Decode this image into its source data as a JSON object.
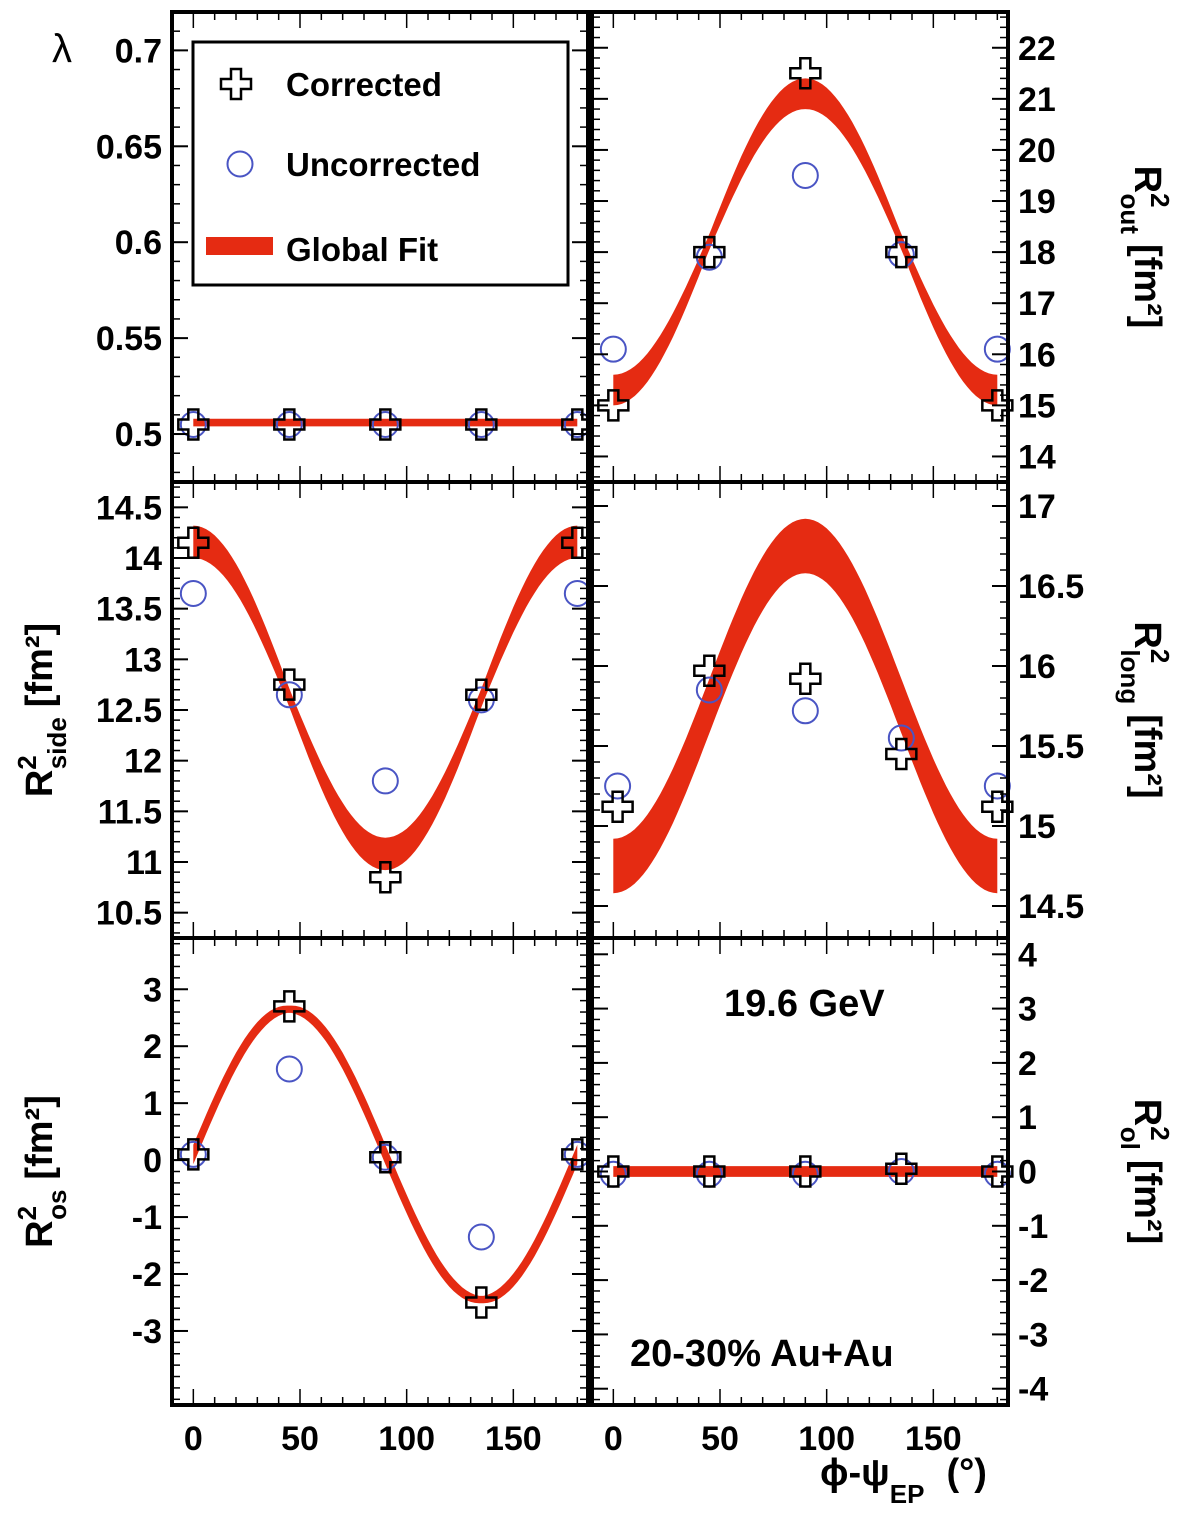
{
  "figure": {
    "xlabel": "ϕ-ψ",
    "xlabel_sub": "EP",
    "xlabel_unit": "(°)",
    "energy": "19.6 GeV",
    "centrality": "20-30%  Au+Au"
  },
  "legend": {
    "corrected": "Corrected",
    "uncorrected": "Uncorrected",
    "fit": "Global Fit"
  },
  "colors": {
    "band": "#e52b12",
    "uncorrected_marker": "#4a55c4",
    "corrected_marker": "#000000"
  },
  "chart_data": [
    {
      "id": "lambda",
      "type": "scatter",
      "ylabel": "λ",
      "xlim": [
        -10,
        185
      ],
      "ylim": [
        0.475,
        0.72
      ],
      "yticks": [
        "0.5",
        "0.55",
        "0.6",
        "0.65",
        "0.7"
      ],
      "axis_side": "left",
      "x": [
        0,
        45,
        90,
        135,
        180
      ],
      "corrected": [
        0.505,
        0.505,
        0.505,
        0.505,
        0.505
      ],
      "uncorrected": [
        0.505,
        0.505,
        0.505,
        0.505,
        0.505
      ],
      "fit": {
        "mean": 0.506,
        "amp": 0,
        "harm": "cos",
        "width": 0.004,
        "width_amp": 0
      }
    },
    {
      "id": "rout",
      "type": "scatter",
      "ylabel": "R",
      "ylabel_sub": "out",
      "ylabel_unit": "[fm²]",
      "xlim": [
        -10,
        185
      ],
      "ylim": [
        13.5,
        22.7
      ],
      "yticks": [
        "14",
        "15",
        "16",
        "17",
        "18",
        "19",
        "20",
        "21",
        "22"
      ],
      "axis_side": "right",
      "x": [
        0,
        45,
        90,
        135,
        180
      ],
      "corrected": [
        15.0,
        18.0,
        21.5,
        18.0,
        15.0
      ],
      "uncorrected": [
        16.1,
        17.9,
        19.5,
        17.95,
        16.1
      ],
      "fit": {
        "mean": 18.2,
        "amp": -2.9,
        "harm": "cos",
        "width": 0.3,
        "width_amp": 0.15
      }
    },
    {
      "id": "rside",
      "type": "scatter",
      "ylabel": "R",
      "ylabel_sub": "side",
      "ylabel_unit": "[fm²]",
      "xlim": [
        -10,
        185
      ],
      "ylim": [
        10.25,
        14.75
      ],
      "yticks": [
        "10.5",
        "11",
        "11.5",
        "12",
        "12.5",
        "13",
        "13.5",
        "14",
        "14.5"
      ],
      "axis_side": "left",
      "x": [
        0,
        45,
        90,
        135,
        180
      ],
      "corrected": [
        14.15,
        12.75,
        10.85,
        12.65,
        14.15
      ],
      "uncorrected": [
        13.65,
        12.65,
        11.8,
        12.6,
        13.65
      ],
      "fit": {
        "mean": 12.62,
        "amp": 1.54,
        "harm": "cos",
        "width": 0.18,
        "width_amp": 0.07
      }
    },
    {
      "id": "rlong",
      "type": "scatter",
      "ylabel": "R",
      "ylabel_sub": "long",
      "ylabel_unit": "[fm²]",
      "xlim": [
        -10,
        185
      ],
      "ylim": [
        14.3,
        17.15
      ],
      "yticks": [
        "14.5",
        "15",
        "15.5",
        "16",
        "16.5",
        "17"
      ],
      "axis_side": "right",
      "x": [
        2,
        45,
        90,
        135,
        180
      ],
      "corrected": [
        15.12,
        15.97,
        15.92,
        15.45,
        15.12
      ],
      "uncorrected": [
        15.25,
        15.85,
        15.72,
        15.55,
        15.25
      ],
      "fit": {
        "mean": 15.75,
        "amp": -1.0,
        "harm": "cos",
        "width": 0.34,
        "width_amp": 0
      }
    },
    {
      "id": "ros",
      "type": "scatter",
      "ylabel": "R",
      "ylabel_sub": "os",
      "ylabel_unit": "[fm²]",
      "xlim": [
        -10,
        185
      ],
      "ylim": [
        -4.3,
        3.9
      ],
      "yticks": [
        "-3",
        "-2",
        "-1",
        "0",
        "1",
        "2",
        "3"
      ],
      "axis_side": "left",
      "x": [
        0,
        45,
        90,
        135,
        180
      ],
      "corrected": [
        0.1,
        2.7,
        0.05,
        -2.5,
        0.1
      ],
      "uncorrected": [
        0.1,
        1.6,
        0.05,
        -1.35,
        0.1
      ],
      "fit": {
        "mean": 0.1,
        "amp": 2.55,
        "harm": "sin",
        "width": 0.12,
        "width_amp": 0.11
      }
    },
    {
      "id": "rol",
      "type": "scatter",
      "ylabel": "R",
      "ylabel_sub": "ol",
      "ylabel_unit": "[fm²]",
      "xlim": [
        -10,
        185
      ],
      "ylim": [
        -4.3,
        4.3
      ],
      "yticks": [
        "-4",
        "-3",
        "-2",
        "-1",
        "0",
        "1",
        "2",
        "3",
        "4"
      ],
      "axis_side": "right",
      "x": [
        0,
        45,
        90,
        135,
        180
      ],
      "corrected": [
        0.0,
        0.0,
        0.0,
        0.05,
        0.0
      ],
      "uncorrected": [
        -0.05,
        -0.05,
        -0.05,
        0.0,
        -0.05
      ],
      "fit": {
        "mean": 0.0,
        "amp": 0,
        "harm": "cos",
        "width": 0.2,
        "width_amp": 0
      }
    }
  ],
  "xticks": [
    "0",
    "50",
    "100",
    "150"
  ]
}
